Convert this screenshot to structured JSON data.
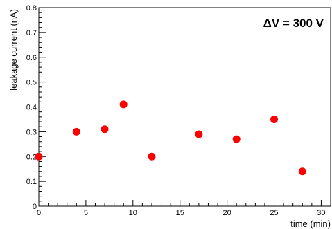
{
  "chart_data": {
    "type": "scatter",
    "title": "",
    "xlabel": "time (min)",
    "ylabel": "leakage current (nA)",
    "xlim": [
      0,
      31
    ],
    "ylim": [
      0,
      0.8
    ],
    "x_ticks": [
      0,
      5,
      10,
      15,
      20,
      25,
      30
    ],
    "y_ticks": [
      0,
      0.1,
      0.2,
      0.3,
      0.4,
      0.5,
      0.6,
      0.7,
      0.8
    ],
    "x_tick_labels": [
      "0",
      "5",
      "10",
      "15",
      "20",
      "25",
      "30"
    ],
    "y_tick_labels": [
      "0",
      "0.1",
      "0.2",
      "0.3",
      "0.4",
      "0.5",
      "0.6",
      "0.7",
      "0.8"
    ],
    "annotation": "ΔV = 300 V",
    "marker_color": "#ff0000",
    "grid": false,
    "series": [
      {
        "x": [
          0,
          4,
          7,
          9,
          12,
          17,
          21,
          25,
          28
        ],
        "y": [
          0.2,
          0.3,
          0.31,
          0.41,
          0.2,
          0.29,
          0.27,
          0.35,
          0.14
        ]
      }
    ]
  }
}
